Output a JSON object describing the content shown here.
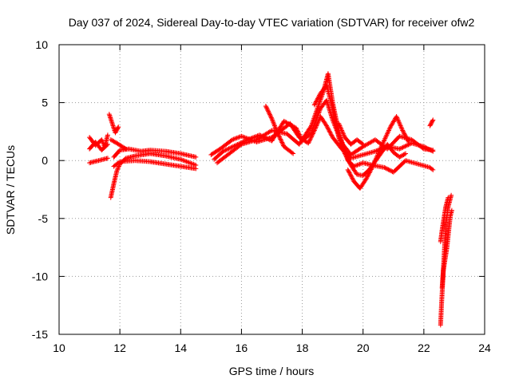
{
  "chart_data": {
    "type": "scatter",
    "title": "Day 037 of 2024, Sidereal Day-to-day VTEC variation (SDTVAR) for receiver ofw2",
    "xlabel": "GPS time / hours",
    "ylabel": "SDTVAR / TECUs",
    "xlim": [
      10,
      24
    ],
    "ylim": [
      -15,
      10
    ],
    "xticks": [
      10,
      12,
      14,
      16,
      18,
      20,
      22,
      24
    ],
    "yticks": [
      -15,
      -10,
      -5,
      0,
      5,
      10
    ],
    "xtick_labels": [
      "10",
      "12",
      "14",
      "16",
      "18",
      "20",
      "22",
      "24"
    ],
    "ytick_labels": [
      "-15",
      "-10",
      "-5",
      "0",
      "5",
      "10"
    ],
    "grid": true,
    "marker": "+",
    "series": [
      {
        "name": "SDTVAR",
        "color": "#ff0000",
        "tracks": [
          [
            [
              11.0,
              2.0
            ],
            [
              11.2,
              1.3
            ],
            [
              11.4,
              1.8
            ],
            [
              11.5,
              1.2
            ],
            [
              11.6,
              2.2
            ]
          ],
          [
            [
              11.0,
              1.0
            ],
            [
              11.2,
              1.6
            ],
            [
              11.4,
              0.9
            ],
            [
              11.6,
              1.4
            ]
          ],
          [
            [
              11.0,
              -0.2
            ],
            [
              11.3,
              0.0
            ],
            [
              11.6,
              0.2
            ]
          ],
          [
            [
              11.65,
              4.0
            ],
            [
              11.75,
              3.2
            ],
            [
              11.85,
              2.4
            ],
            [
              11.95,
              2.9
            ]
          ],
          [
            [
              11.7,
              -3.2
            ],
            [
              11.8,
              -2.0
            ],
            [
              11.9,
              -0.9
            ],
            [
              12.0,
              -0.3
            ],
            [
              12.2,
              0.2
            ],
            [
              12.5,
              0.4
            ],
            [
              13.0,
              0.6
            ],
            [
              13.5,
              0.4
            ],
            [
              14.0,
              0.1
            ],
            [
              14.5,
              -0.4
            ]
          ],
          [
            [
              11.8,
              0.3
            ],
            [
              12.0,
              0.9
            ],
            [
              12.3,
              1.0
            ],
            [
              12.7,
              0.8
            ],
            [
              13.0,
              0.9
            ],
            [
              13.5,
              0.8
            ],
            [
              14.0,
              0.6
            ],
            [
              14.5,
              0.3
            ]
          ],
          [
            [
              11.8,
              -0.5
            ],
            [
              12.0,
              -0.1
            ],
            [
              12.5,
              0.0
            ],
            [
              13.0,
              -0.1
            ],
            [
              13.5,
              -0.3
            ],
            [
              14.0,
              -0.5
            ],
            [
              14.5,
              -0.7
            ]
          ],
          [
            [
              11.7,
              1.8
            ],
            [
              11.9,
              1.5
            ],
            [
              12.2,
              1.0
            ]
          ],
          [
            [
              15.0,
              0.5
            ],
            [
              15.3,
              1.0
            ],
            [
              15.7,
              1.8
            ],
            [
              16.0,
              2.1
            ],
            [
              16.5,
              1.6
            ],
            [
              17.0,
              2.0
            ],
            [
              17.3,
              2.6
            ],
            [
              17.6,
              3.2
            ],
            [
              17.9,
              2.0
            ],
            [
              18.2,
              1.5
            ],
            [
              18.4,
              2.6
            ],
            [
              18.6,
              3.8
            ],
            [
              18.8,
              3.0
            ],
            [
              19.0,
              2.0
            ],
            [
              19.3,
              1.0
            ],
            [
              19.6,
              0.2
            ],
            [
              20.0,
              0.5
            ],
            [
              20.4,
              0.8
            ],
            [
              20.8,
              1.2
            ],
            [
              21.2,
              1.0
            ],
            [
              21.6,
              1.5
            ],
            [
              22.0,
              1.2
            ],
            [
              22.3,
              0.8
            ]
          ],
          [
            [
              15.1,
              0.1
            ],
            [
              15.4,
              0.8
            ],
            [
              15.8,
              1.3
            ],
            [
              16.2,
              1.8
            ],
            [
              16.6,
              2.2
            ],
            [
              17.0,
              1.7
            ],
            [
              17.4,
              3.4
            ],
            [
              17.8,
              2.8
            ],
            [
              18.0,
              1.7
            ],
            [
              18.3,
              2.4
            ],
            [
              18.6,
              4.5
            ],
            [
              18.8,
              5.2
            ],
            [
              19.0,
              3.5
            ],
            [
              19.3,
              1.5
            ],
            [
              19.6,
              0.5
            ],
            [
              20.0,
              1.2
            ],
            [
              20.4,
              1.8
            ],
            [
              20.8,
              1.0
            ],
            [
              21.2,
              2.1
            ],
            [
              21.6,
              1.8
            ],
            [
              22.0,
              1.0
            ],
            [
              22.3,
              0.9
            ]
          ],
          [
            [
              15.2,
              -0.2
            ],
            [
              15.6,
              0.6
            ],
            [
              16.0,
              1.4
            ],
            [
              16.5,
              1.8
            ],
            [
              17.0,
              2.6
            ],
            [
              17.5,
              2.3
            ],
            [
              17.9,
              1.4
            ],
            [
              18.3,
              3.0
            ],
            [
              18.7,
              6.0
            ],
            [
              18.85,
              7.5
            ],
            [
              19.0,
              5.0
            ],
            [
              19.2,
              2.5
            ],
            [
              19.5,
              0.0
            ],
            [
              19.7,
              -0.5
            ],
            [
              20.0,
              -0.2
            ],
            [
              20.3,
              -0.4
            ],
            [
              20.7,
              -0.6
            ],
            [
              21.0,
              -1.0
            ],
            [
              21.4,
              0.0
            ],
            [
              21.8,
              -0.3
            ],
            [
              22.2,
              -0.6
            ],
            [
              22.3,
              -0.8
            ]
          ],
          [
            [
              16.8,
              4.7
            ],
            [
              17.0,
              3.6
            ],
            [
              17.2,
              2.3
            ],
            [
              17.4,
              1.2
            ],
            [
              17.7,
              0.6
            ]
          ],
          [
            [
              18.4,
              4.8
            ],
            [
              18.6,
              5.8
            ],
            [
              18.8,
              6.5
            ],
            [
              19.0,
              4.5
            ],
            [
              19.2,
              2.0
            ],
            [
              19.4,
              0.6
            ],
            [
              19.6,
              -0.4
            ],
            [
              19.8,
              -1.2
            ],
            [
              20.0,
              -1.3
            ],
            [
              20.2,
              -0.8
            ],
            [
              20.5,
              0.3
            ],
            [
              20.8,
              1.4
            ],
            [
              21.0,
              0.7
            ],
            [
              21.2,
              0.3
            ],
            [
              21.4,
              0.6
            ]
          ],
          [
            [
              19.5,
              -0.8
            ],
            [
              19.7,
              -1.8
            ],
            [
              19.9,
              -2.4
            ],
            [
              20.1,
              -1.6
            ],
            [
              20.3,
              -0.6
            ],
            [
              20.6,
              1.2
            ],
            [
              20.9,
              2.9
            ],
            [
              21.1,
              3.8
            ],
            [
              21.3,
              2.6
            ],
            [
              21.5,
              1.6
            ]
          ],
          [
            [
              19.2,
              3.2
            ],
            [
              19.4,
              2.0
            ],
            [
              19.6,
              1.4
            ],
            [
              19.8,
              1.8
            ],
            [
              20.0,
              1.4
            ]
          ],
          [
            [
              22.2,
              3.0
            ],
            [
              22.3,
              3.5
            ]
          ],
          [
            [
              22.55,
              -14.2
            ],
            [
              22.58,
              -12.5
            ],
            [
              22.62,
              -10.5
            ],
            [
              22.66,
              -8.5
            ],
            [
              22.7,
              -6.5
            ],
            [
              22.75,
              -5.0
            ],
            [
              22.8,
              -4.0
            ],
            [
              22.85,
              -3.5
            ],
            [
              22.9,
              -3.0
            ]
          ],
          [
            [
              22.6,
              -11.0
            ],
            [
              22.64,
              -9.5
            ],
            [
              22.7,
              -8.5
            ],
            [
              22.76,
              -7.5
            ],
            [
              22.82,
              -6.0
            ],
            [
              22.87,
              -4.8
            ],
            [
              22.92,
              -4.3
            ]
          ],
          [
            [
              22.55,
              -7.0
            ],
            [
              22.6,
              -6.0
            ],
            [
              22.66,
              -5.0
            ],
            [
              22.72,
              -4.0
            ],
            [
              22.8,
              -3.2
            ]
          ]
        ]
      }
    ]
  }
}
